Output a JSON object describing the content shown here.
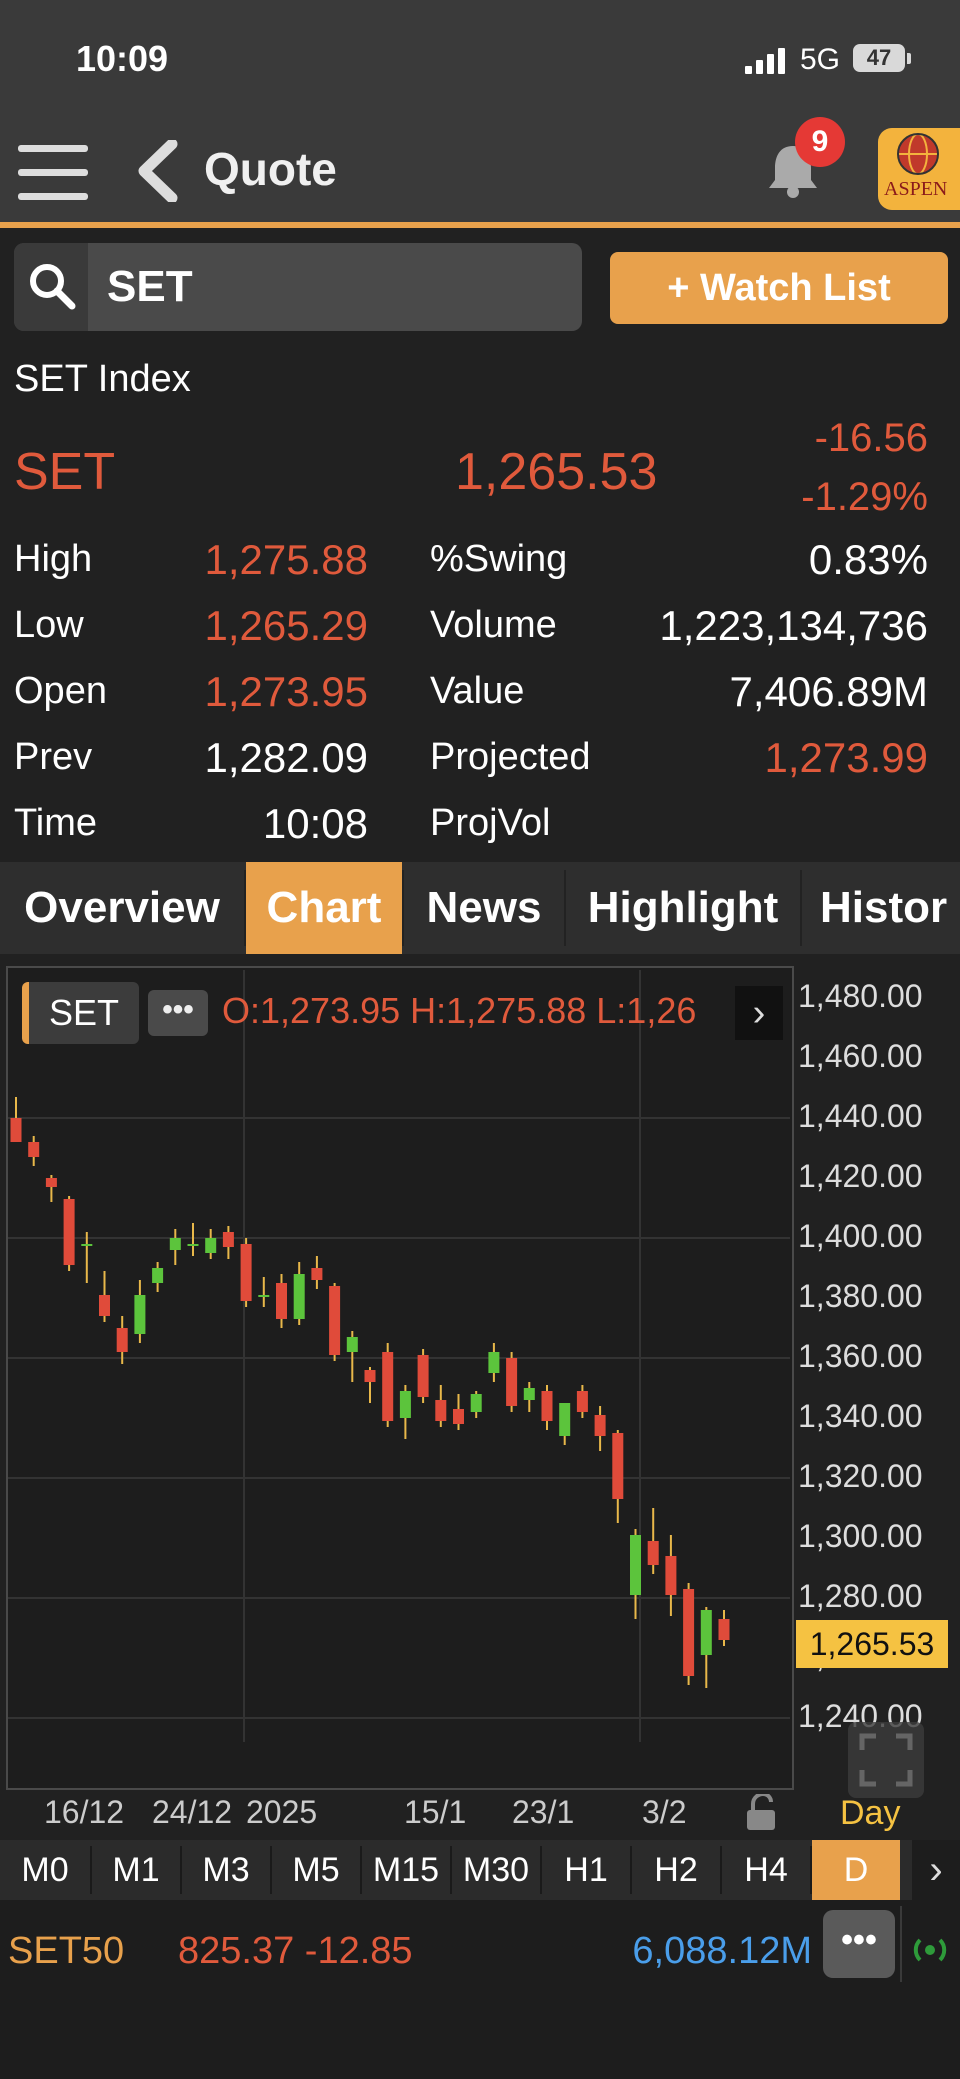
{
  "status_bar": {
    "time": "10:09",
    "network": "5G",
    "battery": "47"
  },
  "nav": {
    "title": "Quote",
    "notification_count": "9",
    "logo_text": "ASPEN"
  },
  "search": {
    "value": "SET"
  },
  "watchlist_button": "+ Watch List",
  "quote": {
    "name": "SET Index",
    "symbol": "SET",
    "last": "1,265.53",
    "change": "-16.56",
    "change_pct": "-1.29%",
    "left_rows": [
      {
        "label": "High",
        "value": "1,275.88",
        "color": "red"
      },
      {
        "label": "Low",
        "value": "1,265.29",
        "color": "red"
      },
      {
        "label": "Open",
        "value": "1,273.95",
        "color": "red"
      },
      {
        "label": "Prev",
        "value": "1,282.09",
        "color": "white"
      },
      {
        "label": "Time",
        "value": "10:08",
        "color": "white"
      }
    ],
    "right_rows": [
      {
        "label": "%Swing",
        "value": "0.83%",
        "color": "white"
      },
      {
        "label": "Volume",
        "value": "1,223,134,736",
        "color": "white"
      },
      {
        "label": "Value",
        "value": "7,406.89M",
        "color": "white"
      },
      {
        "label": "Projected",
        "value": "1,273.99",
        "color": "red"
      },
      {
        "label": "ProjVol",
        "value": "",
        "color": "white"
      }
    ]
  },
  "tabs": [
    "Overview",
    "Chart",
    "News",
    "Highlight",
    "Histor"
  ],
  "active_tab": "Chart",
  "chart_header": {
    "symbol": "SET",
    "more": "•••",
    "ohl": "O:1,273.95  H:1,275.88  L:1,26"
  },
  "chart_data": {
    "type": "candlestick",
    "yaxis_ticks": [
      "1,480.00",
      "1,460.00",
      "1,440.00",
      "1,420.00",
      "1,400.00",
      "1,380.00",
      "1,360.00",
      "1,340.00",
      "1,320.00",
      "1,300.00",
      "1,280.00",
      "1,260.00",
      "1,240.00"
    ],
    "ylim": [
      1236,
      1484
    ],
    "last_price_label": "1,265.53",
    "last_price": 1265.53,
    "xaxis_labels": [
      "16/12",
      "24/12",
      "2025",
      "15/1",
      "23/1",
      "3/2"
    ],
    "candles": [
      {
        "o": 1440,
        "h": 1447,
        "l": 1433,
        "c": 1432
      },
      {
        "o": 1432,
        "h": 1434,
        "l": 1424,
        "c": 1427
      },
      {
        "o": 1420,
        "h": 1421,
        "l": 1412,
        "c": 1417
      },
      {
        "o": 1413,
        "h": 1414,
        "l": 1389,
        "c": 1391
      },
      {
        "o": 1398,
        "h": 1402,
        "l": 1385,
        "c": 1398
      },
      {
        "o": 1381,
        "h": 1389,
        "l": 1372,
        "c": 1374
      },
      {
        "o": 1370,
        "h": 1374,
        "l": 1358,
        "c": 1362
      },
      {
        "o": 1368,
        "h": 1386,
        "l": 1365,
        "c": 1381
      },
      {
        "o": 1385,
        "h": 1392,
        "l": 1382,
        "c": 1390
      },
      {
        "o": 1396,
        "h": 1403,
        "l": 1391,
        "c": 1400
      },
      {
        "o": 1398,
        "h": 1405,
        "l": 1394,
        "c": 1398
      },
      {
        "o": 1395,
        "h": 1403,
        "l": 1393,
        "c": 1400
      },
      {
        "o": 1402,
        "h": 1404,
        "l": 1393,
        "c": 1397
      },
      {
        "o": 1398,
        "h": 1400,
        "l": 1377,
        "c": 1379
      },
      {
        "o": 1381,
        "h": 1387,
        "l": 1377,
        "c": 1381
      },
      {
        "o": 1385,
        "h": 1388,
        "l": 1370,
        "c": 1373
      },
      {
        "o": 1373,
        "h": 1392,
        "l": 1371,
        "c": 1388
      },
      {
        "o": 1390,
        "h": 1394,
        "l": 1383,
        "c": 1386
      },
      {
        "o": 1384,
        "h": 1385,
        "l": 1359,
        "c": 1361
      },
      {
        "o": 1362,
        "h": 1369,
        "l": 1352,
        "c": 1367
      },
      {
        "o": 1356,
        "h": 1357,
        "l": 1345,
        "c": 1352
      },
      {
        "o": 1362,
        "h": 1365,
        "l": 1337,
        "c": 1339
      },
      {
        "o": 1340,
        "h": 1351,
        "l": 1333,
        "c": 1349
      },
      {
        "o": 1361,
        "h": 1363,
        "l": 1345,
        "c": 1347
      },
      {
        "o": 1346,
        "h": 1351,
        "l": 1337,
        "c": 1339
      },
      {
        "o": 1343,
        "h": 1348,
        "l": 1336,
        "c": 1338
      },
      {
        "o": 1342,
        "h": 1349,
        "l": 1340,
        "c": 1348
      },
      {
        "o": 1355,
        "h": 1365,
        "l": 1352,
        "c": 1362
      },
      {
        "o": 1360,
        "h": 1362,
        "l": 1342,
        "c": 1344
      },
      {
        "o": 1346,
        "h": 1352,
        "l": 1342,
        "c": 1350
      },
      {
        "o": 1349,
        "h": 1351,
        "l": 1336,
        "c": 1339
      },
      {
        "o": 1334,
        "h": 1345,
        "l": 1331,
        "c": 1345
      },
      {
        "o": 1349,
        "h": 1351,
        "l": 1340,
        "c": 1342
      },
      {
        "o": 1341,
        "h": 1344,
        "l": 1329,
        "c": 1334
      },
      {
        "o": 1335,
        "h": 1336,
        "l": 1305,
        "c": 1313
      },
      {
        "o": 1281,
        "h": 1303,
        "l": 1273,
        "c": 1301
      },
      {
        "o": 1299,
        "h": 1310,
        "l": 1288,
        "c": 1291
      },
      {
        "o": 1294,
        "h": 1301,
        "l": 1274,
        "c": 1281
      },
      {
        "o": 1283,
        "h": 1285,
        "l": 1251,
        "c": 1254
      },
      {
        "o": 1261,
        "h": 1277,
        "l": 1250,
        "c": 1276
      },
      {
        "o": 1273,
        "h": 1276,
        "l": 1264,
        "c": 1266
      }
    ],
    "colors": {
      "up": "#5cc43c",
      "down": "#e04b3a",
      "wick": "#e8b84a",
      "grid": "#333333"
    }
  },
  "chart_footer": {
    "period": "Day"
  },
  "timeframes": [
    "M0",
    "M1",
    "M3",
    "M5",
    "M15",
    "M30",
    "H1",
    "H2",
    "H4",
    "D"
  ],
  "active_timeframe": "D",
  "ticker": {
    "symbol": "SET50",
    "value": "825.37 -12.85",
    "volume": "6,088.12M",
    "more": "•••"
  }
}
